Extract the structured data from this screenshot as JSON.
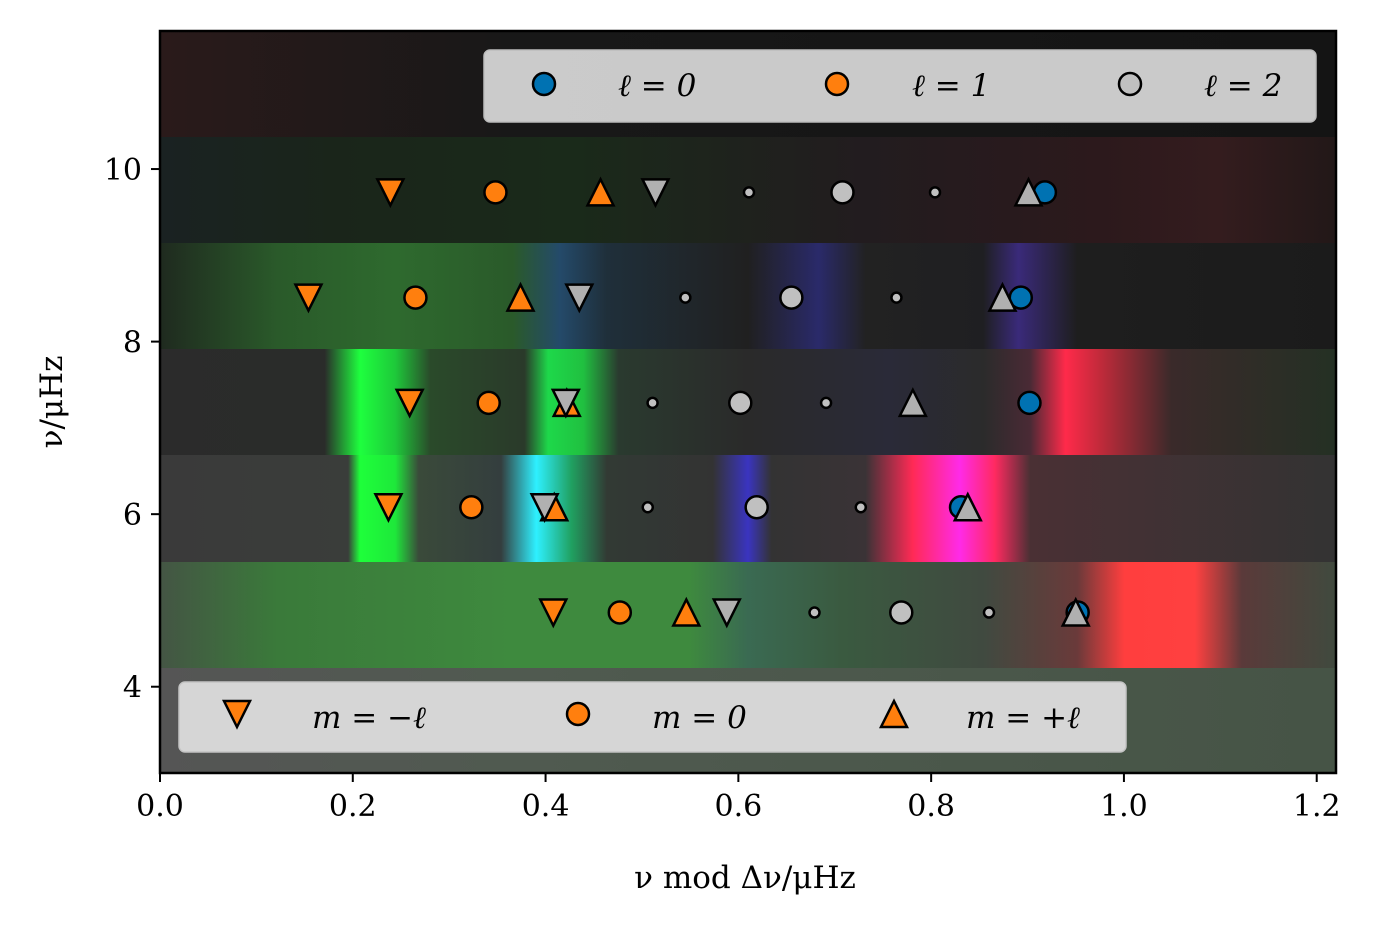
{
  "chart_data": {
    "type": "scatter",
    "title": "",
    "xlabel": "ν  mod Δν/μHz",
    "ylabel": "ν/μHz",
    "xlim": [
      0.0,
      1.22
    ],
    "ylim": [
      3.0,
      11.6
    ],
    "x_ticks": [
      "0.0",
      "0.2",
      "0.4",
      "0.6",
      "0.8",
      "1.0",
      "1.2"
    ],
    "y_ticks": [
      "4",
      "6",
      "8",
      "10"
    ],
    "grid": false,
    "background": "echelle spectrogram (dark bands with bright green, cyan, blue, magenta and red power peaks)",
    "legends": [
      {
        "placement": "top-right",
        "entries": [
          {
            "label": "ℓ = 0",
            "marker": "circle",
            "color": "#0072b2"
          },
          {
            "label": "ℓ = 1",
            "marker": "circle",
            "color": "#ff7f0e"
          },
          {
            "label": "ℓ = 2",
            "marker": "circle",
            "color": "#c0c0c0"
          }
        ]
      },
      {
        "placement": "bottom-left",
        "entries": [
          {
            "label": "m = −ℓ",
            "marker": "triangle-down",
            "color": "#ff7f0e"
          },
          {
            "label": "m = 0",
            "marker": "circle",
            "color": "#ff7f0e"
          },
          {
            "label": "m = +ℓ",
            "marker": "triangle-up",
            "color": "#ff7f0e"
          }
        ]
      }
    ],
    "series": [
      {
        "name": "ℓ = 0",
        "marker": "circle",
        "color": "#0072b2",
        "points": [
          [
            0.952,
            4.86
          ],
          [
            0.831,
            6.08
          ],
          [
            0.902,
            7.29
          ],
          [
            0.893,
            8.51
          ],
          [
            0.918,
            9.73
          ]
        ]
      },
      {
        "name": "ℓ = 1, m = −ℓ",
        "marker": "triangle-down",
        "color": "#ff7f0e",
        "points": [
          [
            0.408,
            4.86
          ],
          [
            0.237,
            6.08
          ],
          [
            0.259,
            7.29
          ],
          [
            0.154,
            8.51
          ],
          [
            0.239,
            9.73
          ]
        ]
      },
      {
        "name": "ℓ = 1, m = 0",
        "marker": "circle",
        "color": "#ff7f0e",
        "points": [
          [
            0.477,
            4.86
          ],
          [
            0.323,
            6.08
          ],
          [
            0.341,
            7.29
          ],
          [
            0.265,
            8.51
          ],
          [
            0.348,
            9.73
          ]
        ]
      },
      {
        "name": "ℓ = 1, m = +ℓ",
        "marker": "triangle-up",
        "color": "#ff7f0e",
        "points": [
          [
            0.546,
            4.86
          ],
          [
            0.409,
            6.08
          ],
          [
            0.422,
            7.29
          ],
          [
            0.374,
            8.51
          ],
          [
            0.457,
            9.73
          ]
        ]
      },
      {
        "name": "ℓ = 2, m = −ℓ",
        "marker": "triangle-down",
        "color": "#b0b0b0",
        "points": [
          [
            0.588,
            4.86
          ],
          [
            0.399,
            6.08
          ],
          [
            0.421,
            7.29
          ],
          [
            0.435,
            8.51
          ],
          [
            0.514,
            9.73
          ]
        ]
      },
      {
        "name": "ℓ = 2, m = −1",
        "marker": "small-circle",
        "color": "#c0c0c0",
        "points": [
          [
            0.679,
            4.86
          ],
          [
            0.506,
            6.08
          ],
          [
            0.511,
            7.29
          ],
          [
            0.545,
            8.51
          ],
          [
            0.611,
            9.73
          ]
        ]
      },
      {
        "name": "ℓ = 2, m = 0",
        "marker": "circle",
        "color": "#c0c0c0",
        "points": [
          [
            0.769,
            4.86
          ],
          [
            0.619,
            6.08
          ],
          [
            0.602,
            7.29
          ],
          [
            0.655,
            8.51
          ],
          [
            0.708,
            9.73
          ]
        ]
      },
      {
        "name": "ℓ = 2, m = +1",
        "marker": "small-circle",
        "color": "#c0c0c0",
        "points": [
          [
            0.86,
            4.86
          ],
          [
            0.727,
            6.08
          ],
          [
            0.691,
            7.29
          ],
          [
            0.764,
            8.51
          ],
          [
            0.804,
            9.73
          ]
        ]
      },
      {
        "name": "ℓ = 2, m = +ℓ",
        "marker": "triangle-up",
        "color": "#b0b0b0",
        "points": [
          [
            0.95,
            4.86
          ],
          [
            0.838,
            6.08
          ],
          [
            0.781,
            7.29
          ],
          [
            0.874,
            8.51
          ],
          [
            0.901,
            9.73
          ]
        ]
      }
    ]
  }
}
